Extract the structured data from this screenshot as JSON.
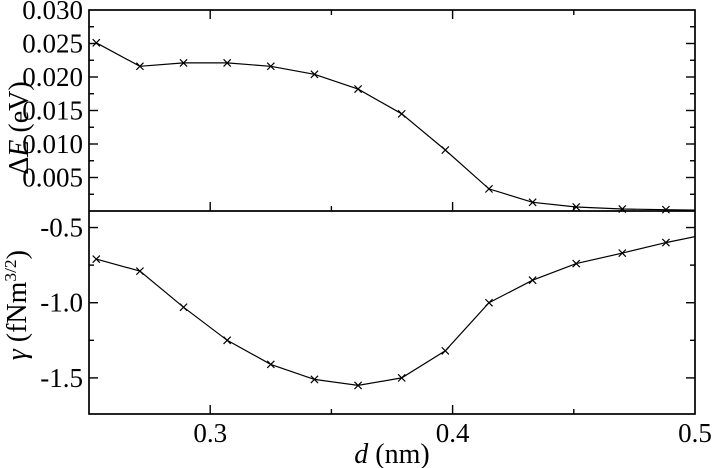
{
  "figure": {
    "background": "#ffffff",
    "frame_color": "#000000",
    "series_color": "#000000",
    "marker_glyph": "x-cross"
  },
  "labels": {
    "x_axis": {
      "var": "d",
      "rest": " (nm)"
    },
    "y_top": {
      "prefix": "Δ",
      "var": "E",
      "rest": " (eV)"
    },
    "y_bottom": {
      "var": "γ",
      "rest": " (fNm",
      "sup": "3/2",
      "close": ")"
    }
  },
  "chart_data": [
    {
      "type": "line",
      "panel": "top",
      "title": "",
      "xlabel": "d (nm)",
      "ylabel": "ΔE (eV)",
      "legend": null,
      "grid": false,
      "marker": "x",
      "line_color": "#000000",
      "xlim": [
        0.25,
        0.5
      ],
      "ylim": [
        0.0,
        0.03
      ],
      "x": [
        0.253,
        0.271,
        0.289,
        0.307,
        0.325,
        0.343,
        0.361,
        0.379,
        0.397,
        0.415,
        0.433,
        0.451,
        0.47,
        0.488
      ],
      "y": [
        0.0251,
        0.0216,
        0.0221,
        0.0221,
        0.0216,
        0.0204,
        0.0182,
        0.0145,
        0.0091,
        0.0033,
        0.0013,
        0.0006,
        0.0003,
        0.0002
      ],
      "tail_point": {
        "x": 0.506,
        "y": 0.0001
      },
      "xticks": {
        "major": [
          0.3,
          0.4,
          0.5
        ],
        "minor": [
          0.35,
          0.45
        ],
        "labels": []
      },
      "yticks": {
        "major": [
          0.005,
          0.01,
          0.015,
          0.02,
          0.025,
          0.03
        ],
        "minor": [
          0.0025,
          0.0075,
          0.0125,
          0.0175,
          0.0225,
          0.0275
        ],
        "labels": [
          "0.005",
          "0.010",
          "0.015",
          "0.020",
          "0.025",
          "0.030"
        ]
      }
    },
    {
      "type": "line",
      "panel": "bottom",
      "title": "",
      "xlabel": "d (nm)",
      "ylabel": "γ (fNm^3/2)",
      "legend": null,
      "grid": false,
      "marker": "x",
      "line_color": "#000000",
      "xlim": [
        0.25,
        0.5
      ],
      "ylim": [
        -1.74,
        -0.39
      ],
      "x": [
        0.253,
        0.271,
        0.289,
        0.307,
        0.325,
        0.343,
        0.361,
        0.379,
        0.397,
        0.415,
        0.433,
        0.451,
        0.47,
        0.488
      ],
      "y": [
        -0.71,
        -0.79,
        -1.03,
        -1.25,
        -1.41,
        -1.51,
        -1.55,
        -1.5,
        -1.32,
        -1.0,
        -0.85,
        -0.74,
        -0.67,
        -0.6
      ],
      "tail_point": {
        "x": 0.506,
        "y": -0.54
      },
      "xticks": {
        "major": [
          0.3,
          0.4,
          0.5
        ],
        "minor": [
          0.35,
          0.45
        ],
        "labels": [
          "0.3",
          "0.4",
          "0.5"
        ]
      },
      "yticks": {
        "major": [
          -0.5,
          -1.0,
          -1.5
        ],
        "minor": [
          -0.75,
          -1.25
        ],
        "labels": [
          "-0.5",
          "-1.0",
          "-1.5"
        ]
      }
    }
  ]
}
